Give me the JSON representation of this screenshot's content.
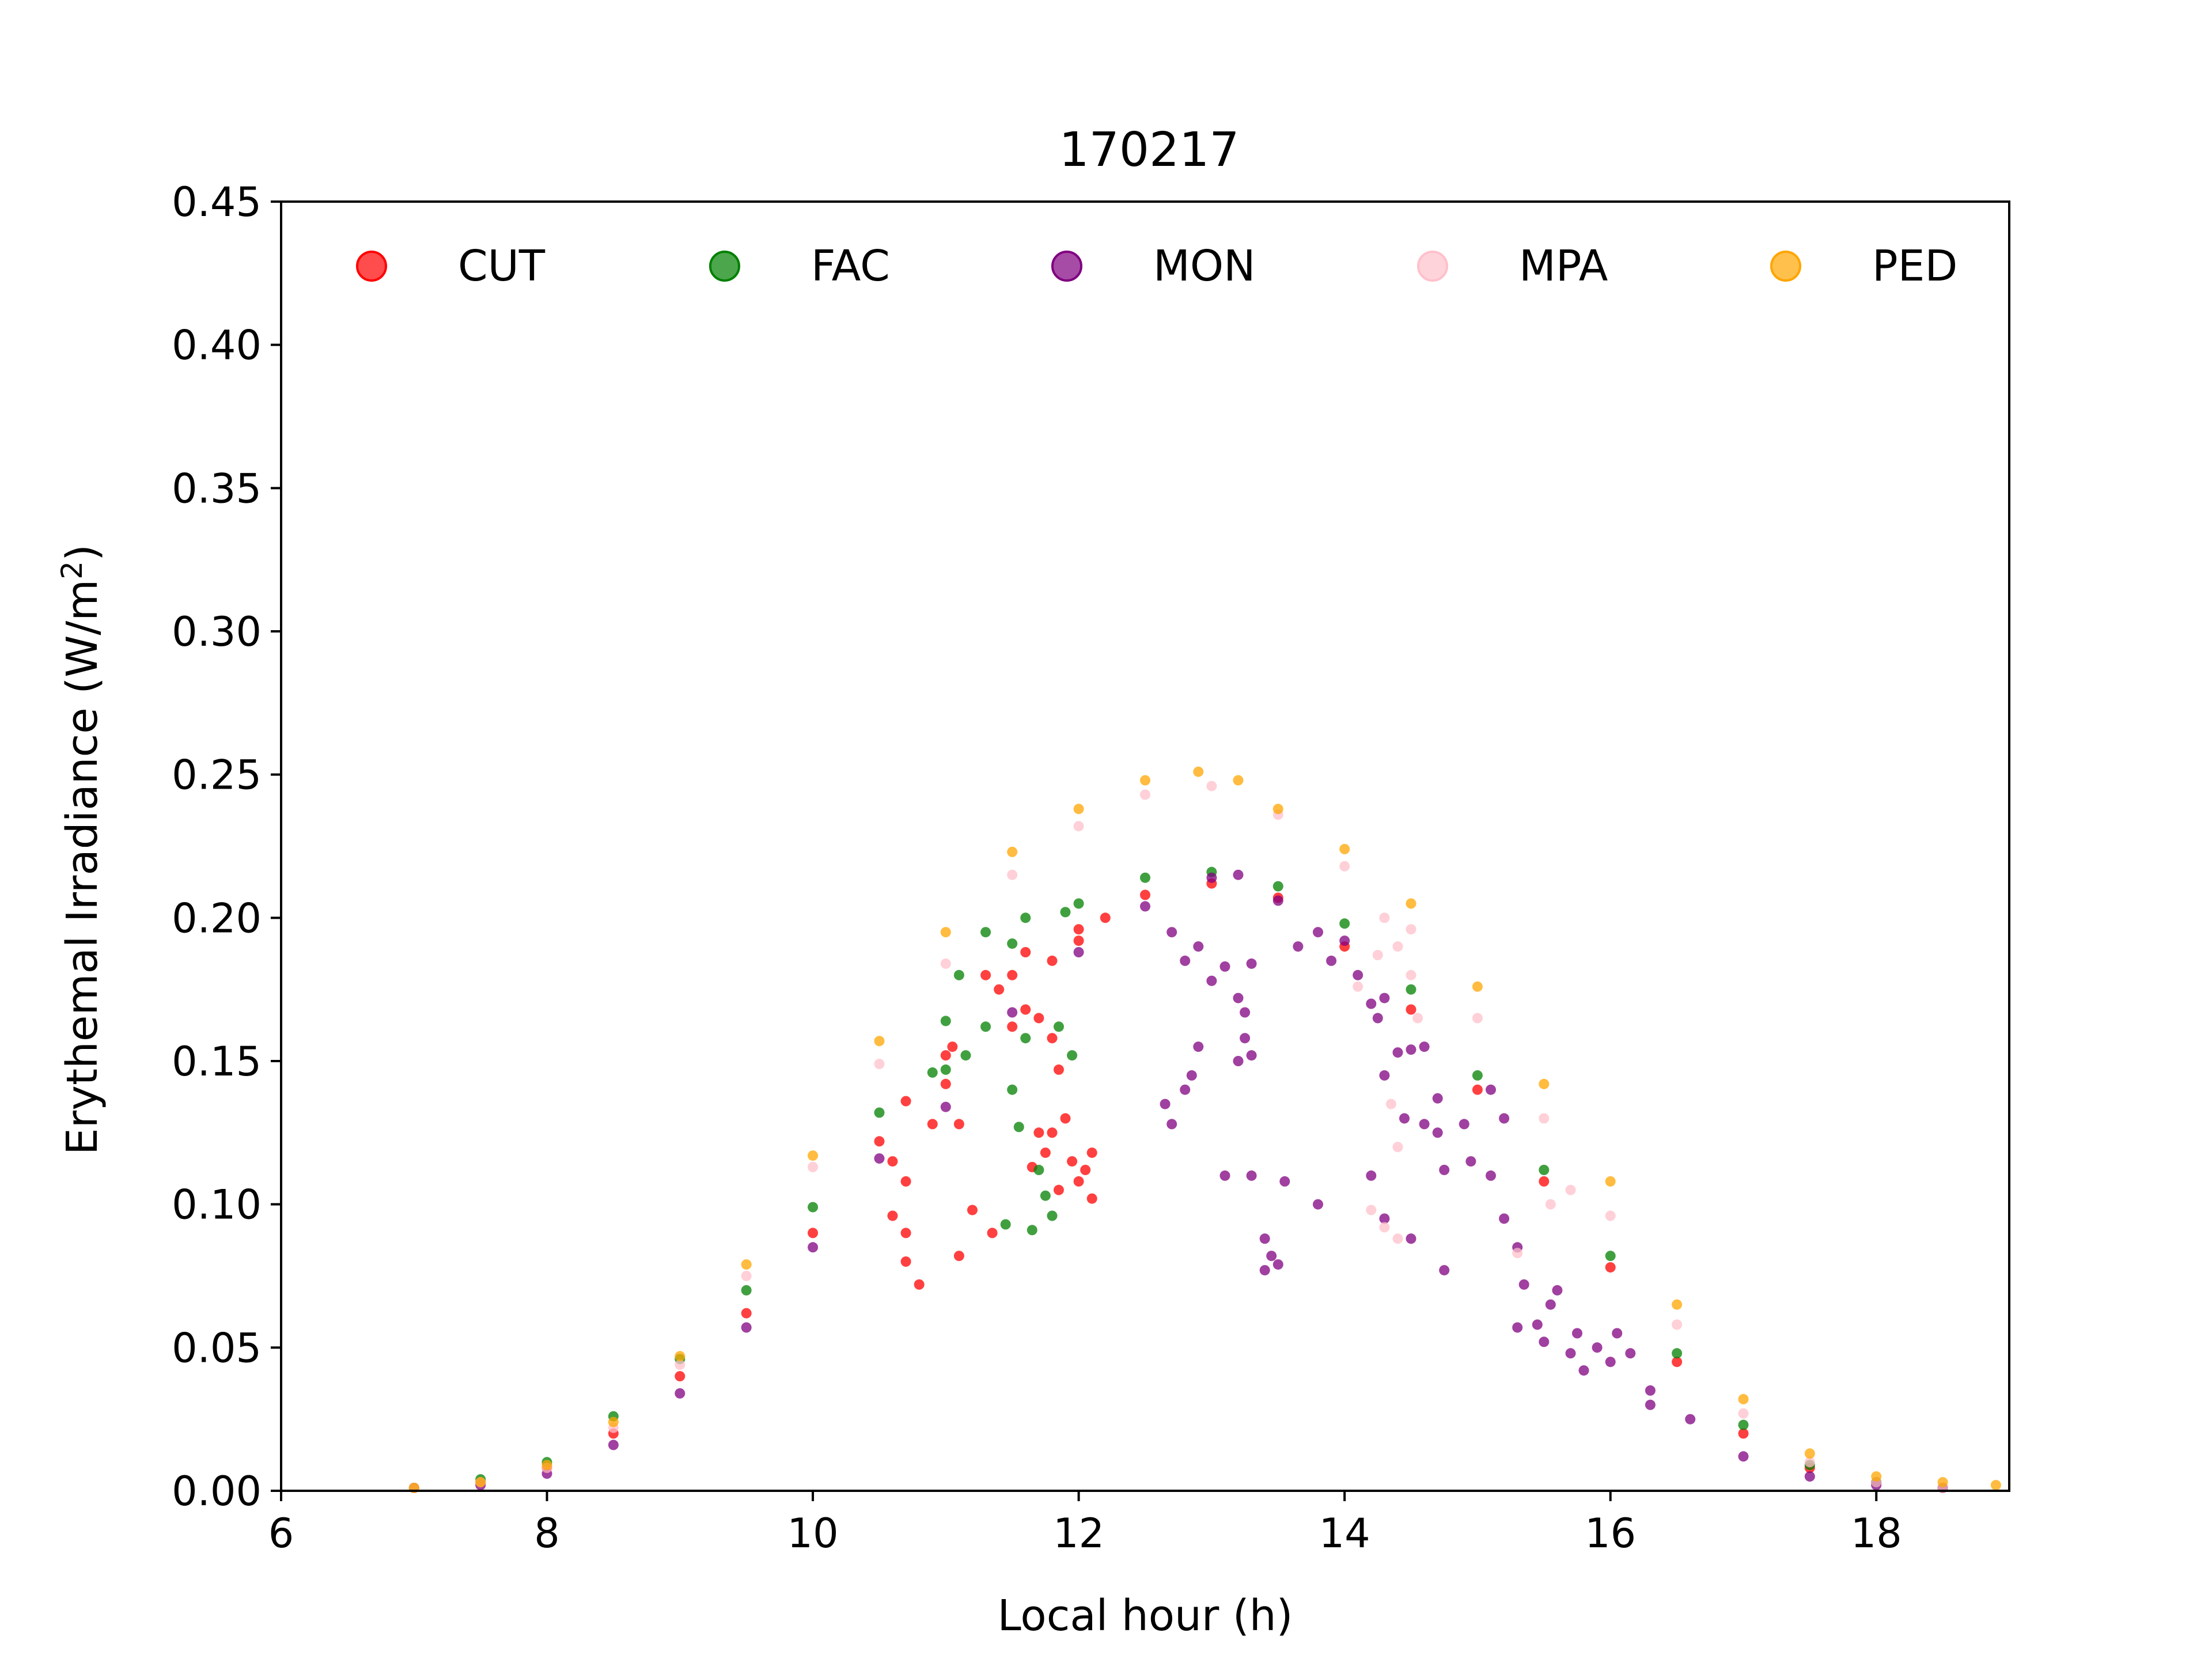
{
  "chart_data": {
    "type": "scatter",
    "title": "170217",
    "xlabel": "Local hour (h)",
    "ylabel_main": "Erythemal Irradiance (W/m",
    "ylabel_sup": "2",
    "ylabel_end": ")",
    "xlim": [
      6,
      19
    ],
    "ylim": [
      0,
      0.45
    ],
    "xticks": [
      6,
      8,
      10,
      12,
      14,
      16,
      18
    ],
    "yticks": [
      0.0,
      0.05,
      0.1,
      0.15,
      0.2,
      0.25,
      0.3,
      0.35,
      0.4,
      0.45
    ],
    "xtick_labels": [
      "6",
      "8",
      "10",
      "12",
      "14",
      "16",
      "18"
    ],
    "ytick_labels": [
      "0.00",
      "0.05",
      "0.10",
      "0.15",
      "0.20",
      "0.25",
      "0.30",
      "0.35",
      "0.40",
      "0.45"
    ],
    "grid": false,
    "legend_position": "top",
    "series": [
      {
        "name": "CUT",
        "color": "#ff0000",
        "points": [
          [
            7.0,
            0.001
          ],
          [
            7.5,
            0.003
          ],
          [
            8.0,
            0.008
          ],
          [
            8.5,
            0.02
          ],
          [
            9.0,
            0.04
          ],
          [
            9.5,
            0.062
          ],
          [
            10.0,
            0.09
          ],
          [
            10.5,
            0.122
          ],
          [
            11.0,
            0.152
          ],
          [
            11.5,
            0.18
          ],
          [
            12.0,
            0.196
          ],
          [
            12.5,
            0.208
          ],
          [
            13.0,
            0.212
          ],
          [
            13.5,
            0.207
          ],
          [
            14.0,
            0.19
          ],
          [
            14.5,
            0.168
          ],
          [
            15.0,
            0.14
          ],
          [
            15.5,
            0.108
          ],
          [
            16.0,
            0.078
          ],
          [
            16.5,
            0.045
          ],
          [
            17.0,
            0.02
          ],
          [
            17.5,
            0.008
          ],
          [
            18.0,
            0.003
          ],
          [
            18.5,
            0.001
          ],
          [
            10.6,
            0.115
          ],
          [
            10.7,
            0.108
          ],
          [
            10.6,
            0.096
          ],
          [
            10.7,
            0.09
          ],
          [
            10.7,
            0.08
          ],
          [
            10.8,
            0.072
          ],
          [
            10.9,
            0.128
          ],
          [
            11.1,
            0.128
          ],
          [
            11.2,
            0.098
          ],
          [
            11.7,
            0.125
          ],
          [
            11.8,
            0.125
          ],
          [
            11.9,
            0.13
          ],
          [
            11.95,
            0.115
          ],
          [
            12.0,
            0.108
          ],
          [
            12.1,
            0.118
          ],
          [
            12.1,
            0.102
          ],
          [
            11.5,
            0.162
          ],
          [
            11.6,
            0.168
          ],
          [
            11.7,
            0.165
          ],
          [
            11.8,
            0.158
          ],
          [
            11.85,
            0.147
          ],
          [
            10.7,
            0.136
          ],
          [
            11.0,
            0.142
          ],
          [
            11.05,
            0.155
          ],
          [
            11.3,
            0.18
          ],
          [
            11.4,
            0.175
          ],
          [
            11.6,
            0.188
          ],
          [
            11.8,
            0.185
          ],
          [
            12.0,
            0.192
          ],
          [
            12.2,
            0.2
          ],
          [
            11.65,
            0.113
          ],
          [
            11.75,
            0.118
          ],
          [
            11.85,
            0.105
          ],
          [
            12.05,
            0.112
          ],
          [
            11.1,
            0.082
          ],
          [
            11.35,
            0.09
          ]
        ]
      },
      {
        "name": "FAC",
        "color": "#008000",
        "points": [
          [
            7.0,
            0.001
          ],
          [
            7.5,
            0.004
          ],
          [
            8.0,
            0.01
          ],
          [
            8.5,
            0.026
          ],
          [
            9.0,
            0.046
          ],
          [
            9.5,
            0.07
          ],
          [
            10.0,
            0.099
          ],
          [
            10.5,
            0.132
          ],
          [
            11.0,
            0.164
          ],
          [
            11.5,
            0.191
          ],
          [
            12.0,
            0.205
          ],
          [
            12.5,
            0.214
          ],
          [
            13.0,
            0.216
          ],
          [
            13.5,
            0.211
          ],
          [
            14.0,
            0.198
          ],
          [
            14.5,
            0.175
          ],
          [
            15.0,
            0.145
          ],
          [
            15.5,
            0.112
          ],
          [
            16.0,
            0.082
          ],
          [
            16.5,
            0.048
          ],
          [
            17.0,
            0.023
          ],
          [
            17.5,
            0.009
          ],
          [
            18.0,
            0.003
          ],
          [
            18.5,
            0.001
          ],
          [
            11.0,
            0.147
          ],
          [
            11.15,
            0.152
          ],
          [
            11.3,
            0.162
          ],
          [
            11.5,
            0.14
          ],
          [
            11.55,
            0.127
          ],
          [
            11.6,
            0.158
          ],
          [
            11.7,
            0.112
          ],
          [
            11.75,
            0.103
          ],
          [
            11.8,
            0.096
          ],
          [
            11.45,
            0.093
          ],
          [
            11.65,
            0.091
          ],
          [
            11.85,
            0.162
          ],
          [
            11.95,
            0.152
          ],
          [
            10.9,
            0.146
          ],
          [
            11.1,
            0.18
          ],
          [
            11.3,
            0.195
          ],
          [
            11.6,
            0.2
          ],
          [
            11.9,
            0.202
          ]
        ]
      },
      {
        "name": "MON",
        "color": "#800080",
        "points": [
          [
            7.0,
            0.001
          ],
          [
            7.5,
            0.002
          ],
          [
            8.0,
            0.006
          ],
          [
            8.5,
            0.016
          ],
          [
            9.0,
            0.034
          ],
          [
            9.5,
            0.057
          ],
          [
            10.0,
            0.085
          ],
          [
            10.5,
            0.116
          ],
          [
            11.0,
            0.134
          ],
          [
            11.5,
            0.167
          ],
          [
            12.0,
            0.188
          ],
          [
            12.5,
            0.204
          ],
          [
            13.0,
            0.214
          ],
          [
            13.2,
            0.215
          ],
          [
            13.5,
            0.206
          ],
          [
            14.0,
            0.192
          ],
          [
            14.3,
            0.172
          ],
          [
            14.5,
            0.154
          ],
          [
            14.7,
            0.137
          ],
          [
            14.9,
            0.128
          ],
          [
            15.1,
            0.11
          ],
          [
            15.3,
            0.057
          ],
          [
            15.5,
            0.052
          ],
          [
            15.7,
            0.048
          ],
          [
            16.0,
            0.045
          ],
          [
            16.3,
            0.035
          ],
          [
            16.6,
            0.025
          ],
          [
            17.0,
            0.012
          ],
          [
            17.5,
            0.005
          ],
          [
            18.0,
            0.002
          ],
          [
            18.5,
            0.001
          ],
          [
            12.7,
            0.195
          ],
          [
            12.8,
            0.185
          ],
          [
            12.9,
            0.19
          ],
          [
            13.0,
            0.178
          ],
          [
            13.1,
            0.183
          ],
          [
            13.2,
            0.172
          ],
          [
            13.25,
            0.167
          ],
          [
            13.3,
            0.184
          ],
          [
            12.65,
            0.135
          ],
          [
            12.7,
            0.128
          ],
          [
            12.8,
            0.14
          ],
          [
            12.9,
            0.155
          ],
          [
            12.85,
            0.145
          ],
          [
            13.2,
            0.15
          ],
          [
            13.25,
            0.158
          ],
          [
            13.3,
            0.152
          ],
          [
            13.1,
            0.11
          ],
          [
            13.3,
            0.11
          ],
          [
            13.55,
            0.108
          ],
          [
            13.8,
            0.1
          ],
          [
            13.4,
            0.088
          ],
          [
            13.45,
            0.082
          ],
          [
            13.4,
            0.077
          ],
          [
            13.5,
            0.079
          ],
          [
            13.65,
            0.19
          ],
          [
            13.8,
            0.195
          ],
          [
            13.9,
            0.185
          ],
          [
            14.1,
            0.18
          ],
          [
            14.2,
            0.17
          ],
          [
            14.25,
            0.165
          ],
          [
            14.3,
            0.145
          ],
          [
            14.4,
            0.153
          ],
          [
            14.6,
            0.155
          ],
          [
            14.45,
            0.13
          ],
          [
            14.6,
            0.128
          ],
          [
            14.7,
            0.125
          ],
          [
            14.75,
            0.112
          ],
          [
            14.2,
            0.11
          ],
          [
            14.3,
            0.095
          ],
          [
            14.5,
            0.088
          ],
          [
            14.75,
            0.077
          ],
          [
            14.95,
            0.115
          ],
          [
            15.1,
            0.14
          ],
          [
            15.2,
            0.13
          ],
          [
            15.2,
            0.095
          ],
          [
            15.3,
            0.085
          ],
          [
            15.35,
            0.072
          ],
          [
            15.55,
            0.065
          ],
          [
            15.6,
            0.07
          ],
          [
            15.75,
            0.055
          ],
          [
            15.8,
            0.042
          ],
          [
            15.9,
            0.05
          ],
          [
            16.05,
            0.055
          ],
          [
            16.15,
            0.048
          ],
          [
            16.3,
            0.03
          ],
          [
            15.45,
            0.058
          ]
        ]
      },
      {
        "name": "MPA",
        "color": "#ffc0cb",
        "points": [
          [
            7.0,
            0.001
          ],
          [
            7.5,
            0.003
          ],
          [
            8.0,
            0.008
          ],
          [
            8.5,
            0.022
          ],
          [
            9.0,
            0.044
          ],
          [
            9.5,
            0.075
          ],
          [
            10.0,
            0.113
          ],
          [
            10.5,
            0.149
          ],
          [
            11.0,
            0.184
          ],
          [
            11.5,
            0.215
          ],
          [
            12.0,
            0.232
          ],
          [
            12.5,
            0.243
          ],
          [
            13.0,
            0.246
          ],
          [
            13.5,
            0.236
          ],
          [
            14.0,
            0.218
          ],
          [
            14.5,
            0.196
          ],
          [
            15.0,
            0.165
          ],
          [
            15.5,
            0.13
          ],
          [
            16.0,
            0.096
          ],
          [
            16.5,
            0.058
          ],
          [
            17.0,
            0.027
          ],
          [
            17.5,
            0.01
          ],
          [
            18.0,
            0.003
          ],
          [
            18.5,
            0.001
          ],
          [
            14.3,
            0.2
          ],
          [
            14.4,
            0.19
          ],
          [
            14.5,
            0.18
          ],
          [
            14.55,
            0.165
          ],
          [
            14.35,
            0.135
          ],
          [
            14.4,
            0.12
          ],
          [
            14.2,
            0.098
          ],
          [
            14.3,
            0.092
          ],
          [
            14.4,
            0.088
          ],
          [
            15.3,
            0.083
          ],
          [
            15.55,
            0.1
          ],
          [
            15.7,
            0.105
          ],
          [
            14.1,
            0.176
          ],
          [
            14.25,
            0.187
          ]
        ]
      },
      {
        "name": "PED",
        "color": "#ffa500",
        "points": [
          [
            7.0,
            0.001
          ],
          [
            7.5,
            0.003
          ],
          [
            8.0,
            0.009
          ],
          [
            8.5,
            0.024
          ],
          [
            9.0,
            0.047
          ],
          [
            9.5,
            0.079
          ],
          [
            10.0,
            0.117
          ],
          [
            10.5,
            0.157
          ],
          [
            11.0,
            0.195
          ],
          [
            11.5,
            0.223
          ],
          [
            12.0,
            0.238
          ],
          [
            12.5,
            0.248
          ],
          [
            12.9,
            0.251
          ],
          [
            13.2,
            0.248
          ],
          [
            13.5,
            0.238
          ],
          [
            14.0,
            0.224
          ],
          [
            14.5,
            0.205
          ],
          [
            15.0,
            0.176
          ],
          [
            15.5,
            0.142
          ],
          [
            16.0,
            0.108
          ],
          [
            16.5,
            0.065
          ],
          [
            17.0,
            0.032
          ],
          [
            17.5,
            0.013
          ],
          [
            18.0,
            0.005
          ],
          [
            18.5,
            0.003
          ],
          [
            18.9,
            0.002
          ]
        ]
      }
    ]
  }
}
